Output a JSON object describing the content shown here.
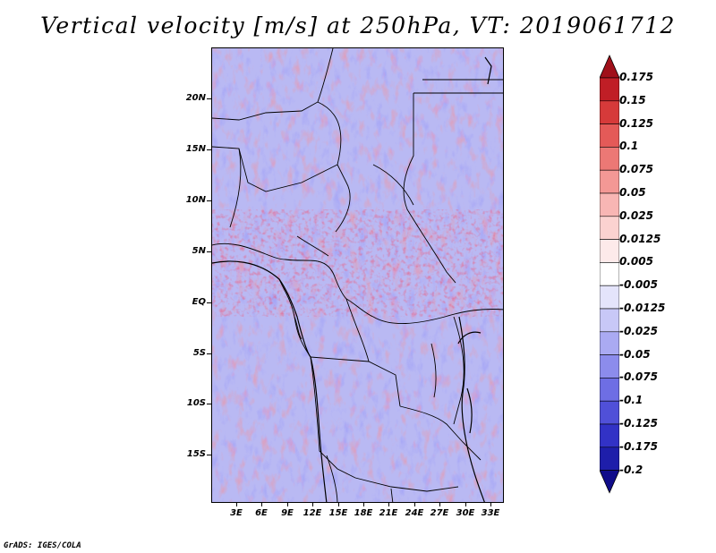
{
  "title": "Vertical velocity [m/s] at 250hPa, VT: 2019061712",
  "map": {
    "y_labels": [
      "20N",
      "15N",
      "10N",
      "5N",
      "EQ",
      "5S",
      "10S",
      "15S"
    ],
    "x_labels": [
      "3E",
      "6E",
      "9E",
      "12E",
      "15E",
      "18E",
      "21E",
      "24E",
      "27E",
      "30E",
      "33E"
    ]
  },
  "colorbar": {
    "labels": [
      "0.175",
      "0.15",
      "0.125",
      "0.1",
      "0.075",
      "0.05",
      "0.025",
      "0.0125",
      "0.005",
      "-0.005",
      "-0.0125",
      "-0.025",
      "-0.05",
      "-0.075",
      "-0.1",
      "-0.125",
      "-0.175",
      "-0.2"
    ],
    "colors": [
      "#a0101a",
      "#c01e26",
      "#d63a3a",
      "#e45a58",
      "#ec7875",
      "#f39895",
      "#f8b6b4",
      "#fbd2d0",
      "#fdeaea",
      "#ffffff",
      "#e4e4fb",
      "#c8c8f7",
      "#aaaaf2",
      "#8c8cec",
      "#6e6ee4",
      "#5050d8",
      "#3232c6",
      "#1e1eaa",
      "#100c8a"
    ]
  },
  "credit": "GrADS: IGES/COLA"
}
